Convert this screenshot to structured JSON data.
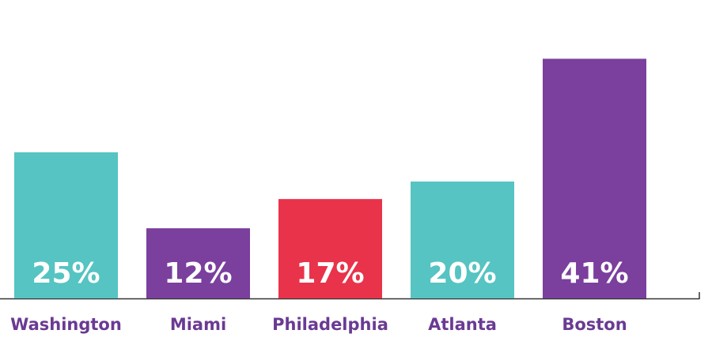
{
  "chart_data": {
    "type": "bar",
    "title": "",
    "xlabel": "",
    "ylabel": "",
    "categories": [
      "Washington",
      "Miami",
      "Philadelphia",
      "Atlanta",
      "Boston"
    ],
    "values": [
      25,
      12,
      17,
      20,
      41
    ],
    "value_labels": [
      "25%",
      "12%",
      "17%",
      "20%",
      "41%"
    ],
    "unit": "%",
    "ylim": [
      0,
      47
    ],
    "grid": false,
    "legend": "none",
    "bar_colors": [
      "#55c4c2",
      "#7b3f9d",
      "#e8334a",
      "#55c4c2",
      "#7b3f9d"
    ],
    "label_color": "#6a3a93",
    "axis_color": "#333333"
  }
}
